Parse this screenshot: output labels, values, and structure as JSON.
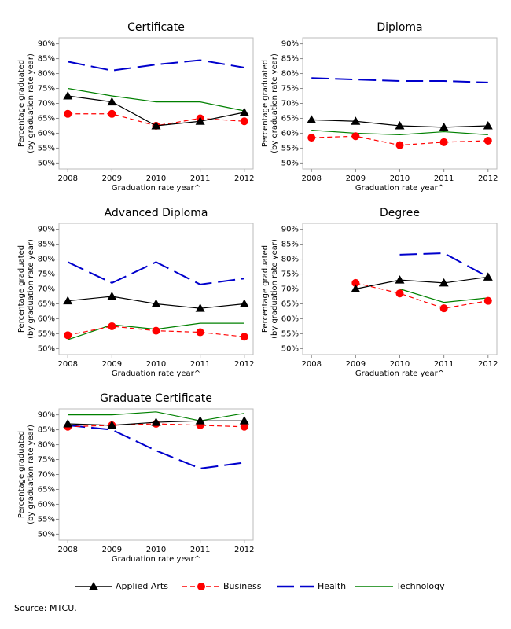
{
  "chart_data": [
    {
      "type": "line",
      "title": "Certificate",
      "ylabel": [
        "Percentage graduated",
        "(by graduation rate year)"
      ],
      "xlabel": "Graduation rate year^",
      "x": [
        2008,
        2009,
        2010,
        2011,
        2012
      ],
      "xlim": [
        2007.8,
        2012.2
      ],
      "xticks": [
        2008,
        2009,
        2010,
        2011,
        2012
      ],
      "ylim": [
        48,
        92
      ],
      "yticks": [
        {
          "value": 50,
          "label": "50%"
        },
        {
          "value": 55,
          "label": "55%"
        },
        {
          "value": 60,
          "label": "60%"
        },
        {
          "value": 65,
          "label": "65%"
        },
        {
          "value": 70,
          "label": "70%"
        },
        {
          "value": 75,
          "label": "75%"
        },
        {
          "value": 80,
          "label": "80%"
        },
        {
          "value": 85,
          "label": "85%"
        },
        {
          "value": 90,
          "label": "90%"
        }
      ],
      "legend": "bottom",
      "series": [
        {
          "name": "Applied Arts",
          "color": "#000000",
          "marker": "triangle",
          "dash": "solid",
          "values": [
            72.5,
            70.5,
            62.5,
            64,
            67
          ]
        },
        {
          "name": "Business",
          "color": "#ff0000",
          "marker": "circle",
          "dash": "dashed",
          "values": [
            66.5,
            66.5,
            62.5,
            65,
            64
          ]
        },
        {
          "name": "Health",
          "color": "#0000cc",
          "dash": "longdash",
          "values": [
            84,
            81,
            83,
            84.5,
            82
          ]
        },
        {
          "name": "Technology",
          "color": "#008000",
          "dash": "solid",
          "values": [
            75,
            72.5,
            70.5,
            70.5,
            67.5
          ]
        }
      ]
    },
    {
      "type": "line",
      "title": "Diploma",
      "ylabel": [
        "Percentage graduated",
        "(by graduation rate year)"
      ],
      "xlabel": "Graduation rate year^",
      "x": [
        2008,
        2009,
        2010,
        2011,
        2012
      ],
      "xlim": [
        2007.8,
        2012.2
      ],
      "xticks": [
        2008,
        2009,
        2010,
        2011,
        2012
      ],
      "ylim": [
        48,
        92
      ],
      "yticks": [
        {
          "value": 50,
          "label": "50%"
        },
        {
          "value": 55,
          "label": "55%"
        },
        {
          "value": 60,
          "label": "60%"
        },
        {
          "value": 65,
          "label": "65%"
        },
        {
          "value": 70,
          "label": "70%"
        },
        {
          "value": 75,
          "label": "75%"
        },
        {
          "value": 80,
          "label": "80%"
        },
        {
          "value": 85,
          "label": "85%"
        },
        {
          "value": 90,
          "label": "90%"
        }
      ],
      "series": [
        {
          "name": "Applied Arts",
          "color": "#000000",
          "marker": "triangle",
          "dash": "solid",
          "values": [
            64.5,
            64,
            62.5,
            62,
            62.5
          ]
        },
        {
          "name": "Business",
          "color": "#ff0000",
          "marker": "circle",
          "dash": "dashed",
          "values": [
            58.5,
            59,
            56,
            57,
            57.5
          ]
        },
        {
          "name": "Health",
          "color": "#0000cc",
          "dash": "longdash",
          "values": [
            78.5,
            78,
            77.5,
            77.5,
            77
          ]
        },
        {
          "name": "Technology",
          "color": "#008000",
          "dash": "solid",
          "values": [
            61,
            60,
            59.5,
            60.5,
            59.5
          ]
        }
      ]
    },
    {
      "type": "line",
      "title": "Advanced Diploma",
      "ylabel": [
        "Percentage graduated",
        "(by graduation rate year)"
      ],
      "xlabel": "Graduation rate year^",
      "x": [
        2008,
        2009,
        2010,
        2011,
        2012
      ],
      "xlim": [
        2007.8,
        2012.2
      ],
      "xticks": [
        2008,
        2009,
        2010,
        2011,
        2012
      ],
      "ylim": [
        48,
        92
      ],
      "yticks": [
        {
          "value": 50,
          "label": "50%"
        },
        {
          "value": 55,
          "label": "55%"
        },
        {
          "value": 60,
          "label": "60%"
        },
        {
          "value": 65,
          "label": "65%"
        },
        {
          "value": 70,
          "label": "70%"
        },
        {
          "value": 75,
          "label": "75%"
        },
        {
          "value": 80,
          "label": "80%"
        },
        {
          "value": 85,
          "label": "85%"
        },
        {
          "value": 90,
          "label": "90%"
        }
      ],
      "series": [
        {
          "name": "Applied Arts",
          "color": "#000000",
          "marker": "triangle",
          "dash": "solid",
          "values": [
            66,
            67.5,
            65,
            63.5,
            65
          ]
        },
        {
          "name": "Business",
          "color": "#ff0000",
          "marker": "circle",
          "dash": "dashed",
          "values": [
            54.5,
            57.5,
            56,
            55.5,
            54
          ]
        },
        {
          "name": "Health",
          "color": "#0000cc",
          "dash": "longdash",
          "values": [
            79,
            72,
            79,
            71.5,
            73.5
          ]
        },
        {
          "name": "Technology",
          "color": "#008000",
          "dash": "solid",
          "values": [
            53,
            58,
            56.5,
            58.5,
            58.5
          ]
        }
      ]
    },
    {
      "type": "line",
      "title": "Degree",
      "ylabel": [
        "Percentage graduated",
        "(by graduation rate year)"
      ],
      "xlabel": "Graduation rate year^",
      "x": [
        2008,
        2009,
        2010,
        2011,
        2012
      ],
      "xlim": [
        2007.8,
        2012.2
      ],
      "xticks": [
        2008,
        2009,
        2010,
        2011,
        2012
      ],
      "ylim": [
        48,
        92
      ],
      "yticks": [
        {
          "value": 50,
          "label": "50%"
        },
        {
          "value": 55,
          "label": "55%"
        },
        {
          "value": 60,
          "label": "60%"
        },
        {
          "value": 65,
          "label": "65%"
        },
        {
          "value": 70,
          "label": "70%"
        },
        {
          "value": 75,
          "label": "75%"
        },
        {
          "value": 80,
          "label": "80%"
        },
        {
          "value": 85,
          "label": "85%"
        },
        {
          "value": 90,
          "label": "90%"
        }
      ],
      "series": [
        {
          "name": "Applied Arts",
          "color": "#000000",
          "marker": "triangle",
          "dash": "solid",
          "values": [
            null,
            70,
            73,
            72,
            74
          ]
        },
        {
          "name": "Business",
          "color": "#ff0000",
          "marker": "circle",
          "dash": "dashed",
          "values": [
            null,
            72,
            68.5,
            63.5,
            66
          ]
        },
        {
          "name": "Health",
          "color": "#0000cc",
          "dash": "longdash",
          "values": [
            null,
            null,
            81.5,
            82,
            74
          ]
        },
        {
          "name": "Technology",
          "color": "#008000",
          "dash": "solid",
          "values": [
            null,
            null,
            70,
            65.5,
            67
          ]
        }
      ]
    },
    {
      "type": "line",
      "title": "Graduate Certificate",
      "ylabel": [
        "Percentage graduated",
        "(by graduation rate year)"
      ],
      "xlabel": "Graduation rate year^",
      "x": [
        2008,
        2009,
        2010,
        2011,
        2012
      ],
      "xlim": [
        2007.8,
        2012.2
      ],
      "xticks": [
        2008,
        2009,
        2010,
        2011,
        2012
      ],
      "ylim": [
        48,
        92
      ],
      "yticks": [
        {
          "value": 50,
          "label": "50%"
        },
        {
          "value": 55,
          "label": "55%"
        },
        {
          "value": 60,
          "label": "60%"
        },
        {
          "value": 65,
          "label": "65%"
        },
        {
          "value": 70,
          "label": "70%"
        },
        {
          "value": 75,
          "label": "75%"
        },
        {
          "value": 80,
          "label": "80%"
        },
        {
          "value": 85,
          "label": "85%"
        },
        {
          "value": 90,
          "label": "90%"
        }
      ],
      "series": [
        {
          "name": "Applied Arts",
          "color": "#000000",
          "marker": "triangle",
          "dash": "solid",
          "values": [
            87,
            86.5,
            87.5,
            88,
            88
          ]
        },
        {
          "name": "Business",
          "color": "#ff0000",
          "marker": "circle",
          "dash": "dashed",
          "values": [
            86,
            86.5,
            87,
            86.5,
            86
          ]
        },
        {
          "name": "Health",
          "color": "#0000cc",
          "dash": "longdash",
          "values": [
            86.5,
            85,
            78,
            72,
            74
          ]
        },
        {
          "name": "Technology",
          "color": "#008000",
          "dash": "solid",
          "values": [
            90,
            90,
            91,
            88,
            90.5
          ]
        }
      ]
    }
  ],
  "source": "Source: MTCU."
}
